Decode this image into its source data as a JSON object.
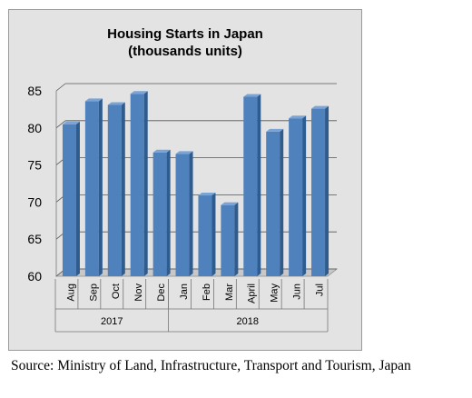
{
  "chart_data": {
    "type": "bar",
    "title": "Housing Starts in Japan",
    "subtitle": "(thousands units)",
    "categories": [
      "Aug",
      "Sep",
      "Oct",
      "Nov",
      "Dec",
      "Jan",
      "Feb",
      "Mar",
      "April",
      "May",
      "Jun",
      "Jul"
    ],
    "values": [
      80.5,
      83.6,
      83.1,
      84.6,
      76.7,
      76.5,
      70.9,
      69.6,
      84.2,
      79.5,
      81.3,
      82.6
    ],
    "groups": [
      {
        "label": "2017",
        "start": 0,
        "end": 4
      },
      {
        "label": "2018",
        "start": 5,
        "end": 11
      }
    ],
    "ylim": [
      60,
      85
    ],
    "yticks": [
      60,
      65,
      70,
      75,
      80,
      85
    ],
    "grid": true,
    "bar_color": "#4f81bd",
    "bar_side_color": "#2f5c8f",
    "bar_top_color": "#7aa3d6"
  },
  "source_note": "Source: Ministry of Land, Infrastructure, Transport and Tourism, Japan"
}
